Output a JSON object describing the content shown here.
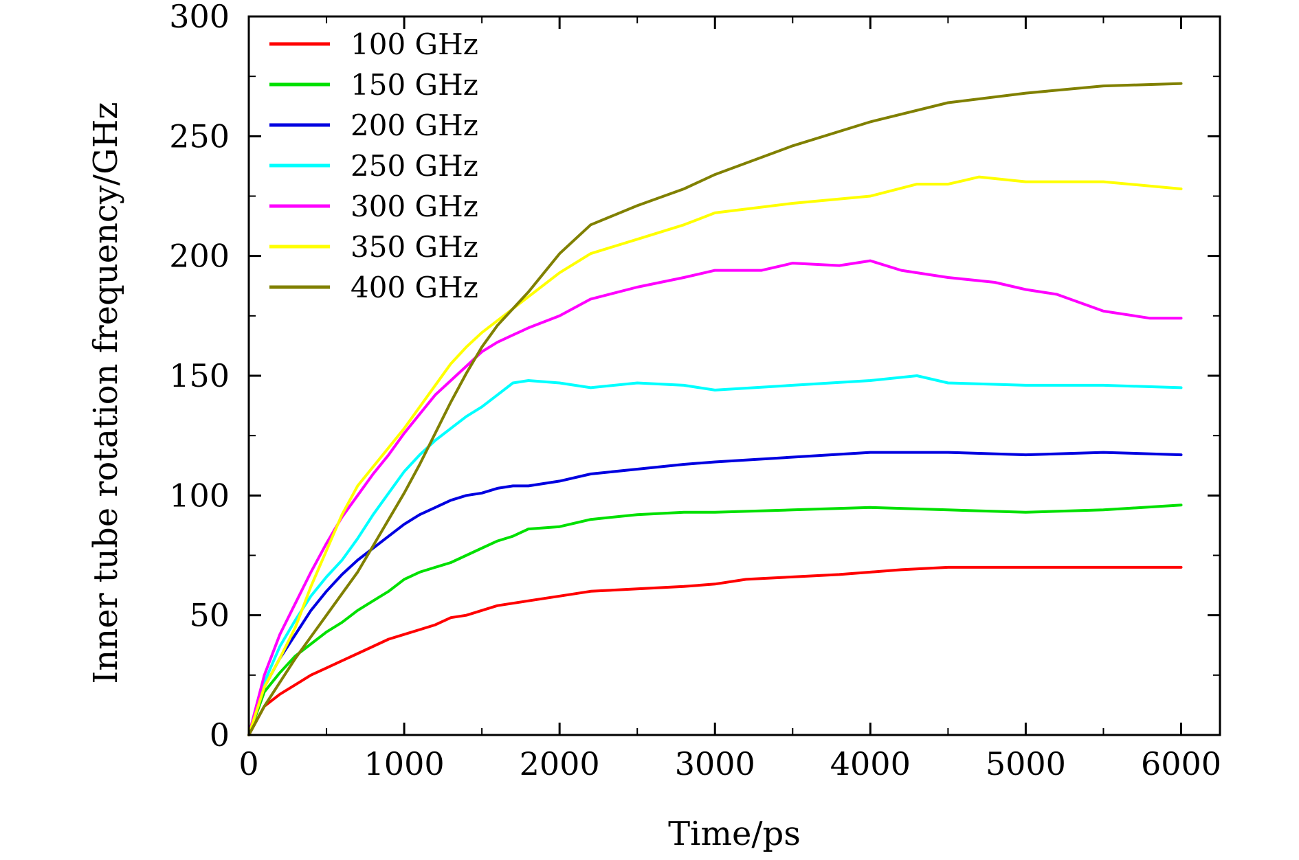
{
  "chart_data": {
    "type": "line",
    "title": "",
    "xlabel": "Time/ps",
    "ylabel": "Inner tube rotation frequency/GHz",
    "xlim": [
      0,
      6250
    ],
    "ylim": [
      0,
      300
    ],
    "xticks": [
      0,
      1000,
      2000,
      3000,
      4000,
      5000,
      6000
    ],
    "yticks": [
      0,
      50,
      100,
      150,
      200,
      250,
      300
    ],
    "grid": false,
    "legend_position": "top-left",
    "series": [
      {
        "name": "100 GHz",
        "color": "#ff0000",
        "x": [
          0,
          100,
          200,
          300,
          400,
          500,
          600,
          700,
          800,
          900,
          1000,
          1100,
          1200,
          1300,
          1400,
          1500,
          1600,
          1700,
          1800,
          2000,
          2200,
          2500,
          2800,
          3000,
          3200,
          3500,
          3800,
          4000,
          4200,
          4500,
          4800,
          5000,
          5500,
          6000
        ],
        "values": [
          0,
          12,
          17,
          21,
          25,
          28,
          31,
          34,
          37,
          40,
          42,
          44,
          46,
          49,
          50,
          52,
          54,
          55,
          56,
          58,
          60,
          61,
          62,
          63,
          65,
          66,
          67,
          68,
          69,
          70,
          70,
          70,
          70,
          70
        ]
      },
      {
        "name": "150 GHz",
        "color": "#00e000",
        "x": [
          0,
          100,
          200,
          300,
          400,
          500,
          600,
          700,
          800,
          900,
          1000,
          1100,
          1200,
          1300,
          1400,
          1500,
          1600,
          1700,
          1800,
          2000,
          2200,
          2500,
          2800,
          3000,
          3500,
          4000,
          4500,
          5000,
          5500,
          6000
        ],
        "values": [
          0,
          18,
          26,
          33,
          38,
          43,
          47,
          52,
          56,
          60,
          65,
          68,
          70,
          72,
          75,
          78,
          81,
          83,
          86,
          87,
          90,
          92,
          93,
          93,
          94,
          95,
          94,
          93,
          94,
          96
        ]
      },
      {
        "name": "200 GHz",
        "color": "#0000e0",
        "x": [
          0,
          100,
          200,
          300,
          400,
          500,
          600,
          700,
          800,
          900,
          1000,
          1100,
          1200,
          1300,
          1400,
          1500,
          1600,
          1700,
          1800,
          2000,
          2200,
          2500,
          2800,
          3000,
          3500,
          4000,
          4500,
          5000,
          5500,
          6000
        ],
        "values": [
          0,
          20,
          32,
          42,
          52,
          60,
          67,
          73,
          78,
          83,
          88,
          92,
          95,
          98,
          100,
          101,
          103,
          104,
          104,
          106,
          109,
          111,
          113,
          114,
          116,
          118,
          118,
          117,
          118,
          117
        ]
      },
      {
        "name": "250 GHz",
        "color": "#00ffff",
        "x": [
          0,
          100,
          200,
          300,
          400,
          500,
          600,
          700,
          800,
          900,
          1000,
          1100,
          1200,
          1300,
          1400,
          1500,
          1600,
          1700,
          1800,
          2000,
          2200,
          2500,
          2800,
          3000,
          3500,
          4000,
          4300,
          4500,
          5000,
          5500,
          6000
        ],
        "values": [
          0,
          22,
          37,
          48,
          58,
          66,
          73,
          82,
          92,
          101,
          110,
          117,
          123,
          128,
          133,
          137,
          142,
          147,
          148,
          147,
          145,
          147,
          146,
          144,
          146,
          148,
          150,
          147,
          146,
          146,
          145
        ]
      },
      {
        "name": "300 GHz",
        "color": "#ff00ff",
        "x": [
          0,
          100,
          200,
          300,
          400,
          500,
          600,
          700,
          800,
          900,
          1000,
          1100,
          1200,
          1300,
          1400,
          1500,
          1600,
          1700,
          1800,
          2000,
          2200,
          2500,
          2800,
          3000,
          3300,
          3500,
          3800,
          4000,
          4200,
          4500,
          4800,
          5000,
          5200,
          5500,
          5800,
          6000
        ],
        "values": [
          0,
          25,
          42,
          55,
          68,
          80,
          91,
          100,
          109,
          117,
          126,
          134,
          142,
          148,
          154,
          160,
          164,
          167,
          170,
          175,
          182,
          187,
          191,
          194,
          194,
          197,
          196,
          198,
          194,
          191,
          189,
          186,
          184,
          177,
          174,
          174
        ]
      },
      {
        "name": "350 GHz",
        "color": "#ffff00",
        "x": [
          0,
          100,
          200,
          300,
          400,
          500,
          600,
          700,
          800,
          900,
          1000,
          1100,
          1200,
          1300,
          1400,
          1500,
          1600,
          1700,
          1800,
          2000,
          2200,
          2500,
          2800,
          3000,
          3500,
          4000,
          4300,
          4500,
          4700,
          5000,
          5500,
          6000
        ],
        "values": [
          0,
          20,
          32,
          45,
          62,
          77,
          92,
          104,
          112,
          120,
          128,
          137,
          146,
          155,
          162,
          168,
          173,
          178,
          183,
          193,
          201,
          207,
          213,
          218,
          222,
          225,
          230,
          230,
          233,
          231,
          231,
          228
        ]
      },
      {
        "name": "400 GHz",
        "color": "#808000",
        "x": [
          0,
          100,
          200,
          300,
          400,
          500,
          600,
          700,
          800,
          900,
          1000,
          1100,
          1200,
          1300,
          1400,
          1500,
          1600,
          1700,
          1800,
          2000,
          2200,
          2500,
          2800,
          3000,
          3500,
          4000,
          4500,
          5000,
          5500,
          6000
        ],
        "values": [
          0,
          12,
          22,
          32,
          41,
          50,
          59,
          68,
          79,
          90,
          101,
          113,
          126,
          139,
          151,
          162,
          171,
          178,
          185,
          201,
          213,
          221,
          228,
          234,
          246,
          256,
          264,
          268,
          271,
          272
        ]
      }
    ]
  }
}
